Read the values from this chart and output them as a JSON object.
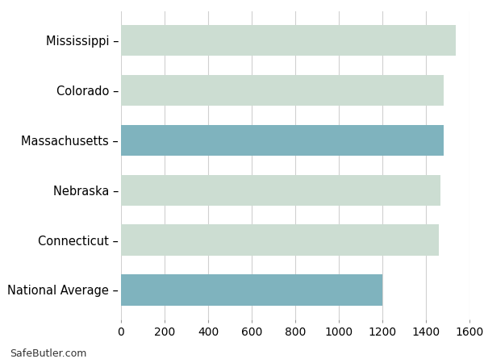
{
  "categories": [
    "Mississippi",
    "Colorado",
    "Massachusetts",
    "Nebraska",
    "Connecticut",
    "National Average"
  ],
  "values": [
    1537,
    1482,
    1480,
    1466,
    1458,
    1199
  ],
  "bar_colors": [
    "#ccddd2",
    "#ccddd2",
    "#7fb3be",
    "#ccddd2",
    "#ccddd2",
    "#7fb3be"
  ],
  "background_color": "#ffffff",
  "xlim": [
    0,
    1600
  ],
  "xticks": [
    0,
    200,
    400,
    600,
    800,
    1000,
    1200,
    1400,
    1600
  ],
  "grid_color": "#d0d0d0",
  "bar_height": 0.62,
  "watermark": "SafeButler.com",
  "tick_fontsize": 10,
  "label_fontsize": 10.5
}
